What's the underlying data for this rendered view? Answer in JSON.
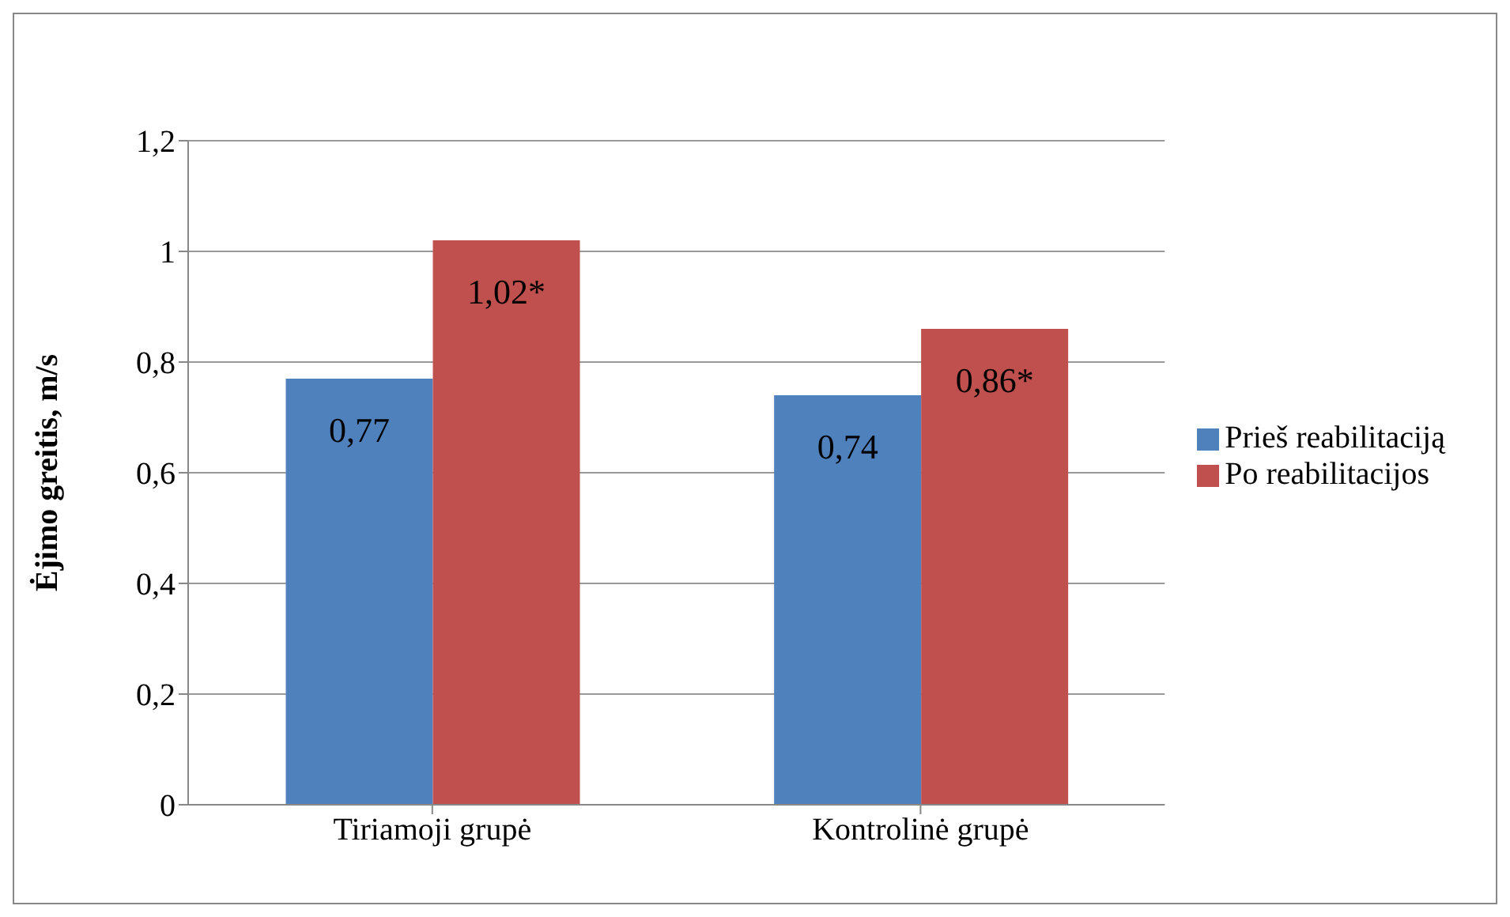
{
  "chart_data": {
    "type": "bar",
    "ylabel": "Ėjimo greitis, m/s",
    "categories": [
      "Tiriamoji grupė",
      "Kontrolinė grupė"
    ],
    "series": [
      {
        "name": "Prieš reabilitaciją",
        "color": "#4f81bd",
        "values": [
          0.77,
          0.74
        ],
        "value_labels": [
          "0,77",
          "0,74"
        ]
      },
      {
        "name": "Po reabilitacijos",
        "color": "#c0504d",
        "values": [
          1.02,
          0.86
        ],
        "value_labels": [
          "1,02*",
          "0,86*"
        ]
      }
    ],
    "ylim": [
      0,
      1.2
    ],
    "yticks": [
      0,
      {
        "value": 0.2,
        "label": "0,2"
      },
      {
        "value": 0.4,
        "label": "0,4"
      },
      {
        "value": 0.6,
        "label": "0,6"
      },
      {
        "value": 0.8,
        "label": "0,8"
      },
      1,
      {
        "value": 1.2,
        "label": "1,2"
      }
    ],
    "grid": "y",
    "legend": "right"
  }
}
